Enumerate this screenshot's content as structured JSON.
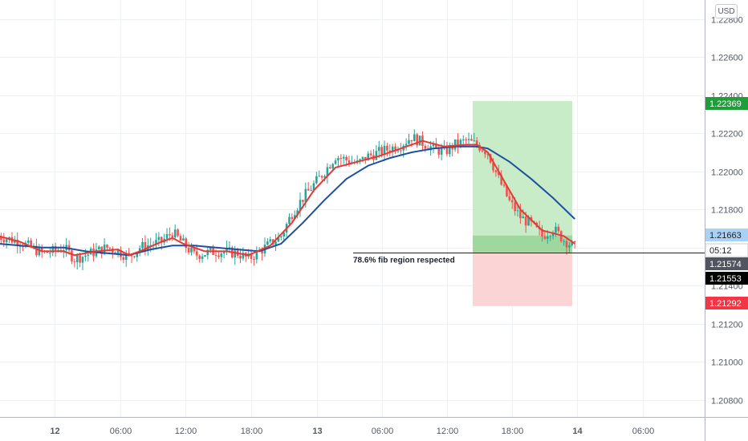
{
  "currency_label": "USD",
  "chart_data": {
    "type": "candlestick",
    "instrument_quote": "USD",
    "y_ticks": [
      "1.20800",
      "1.21000",
      "1.21200",
      "1.21400",
      "1.21600",
      "1.21800",
      "1.22000",
      "1.22200",
      "1.22400",
      "1.22600",
      "1.22800"
    ],
    "y_tick_values": [
      1.208,
      1.21,
      1.212,
      1.214,
      1.216,
      1.218,
      1.22,
      1.222,
      1.224,
      1.226,
      1.228
    ],
    "ylim": [
      1.2071,
      1.229
    ],
    "x_ticks": [
      {
        "label": "12",
        "bold": true
      },
      {
        "label": "06:00",
        "bold": false
      },
      {
        "label": "12:00",
        "bold": false
      },
      {
        "label": "18:00",
        "bold": false
      },
      {
        "label": "13",
        "bold": true
      },
      {
        "label": "06:00",
        "bold": false
      },
      {
        "label": "12:00",
        "bold": false
      },
      {
        "label": "18:00",
        "bold": false
      },
      {
        "label": "14",
        "bold": true
      },
      {
        "label": "06:00",
        "bold": false
      }
    ],
    "price_trend": [
      [
        0,
        1.2166
      ],
      [
        2,
        1.2163
      ],
      [
        4,
        1.2157
      ],
      [
        5,
        1.2158
      ],
      [
        6,
        1.216
      ],
      [
        7,
        1.2154
      ],
      [
        8,
        1.2156
      ],
      [
        10,
        1.216
      ],
      [
        11,
        1.2158
      ],
      [
        12,
        1.2155
      ],
      [
        13,
        1.216
      ],
      [
        15,
        1.2163
      ],
      [
        16,
        1.2168
      ],
      [
        17,
        1.2162
      ],
      [
        18,
        1.2156
      ],
      [
        20,
        1.2158
      ],
      [
        22,
        1.2157
      ],
      [
        23,
        1.2154
      ],
      [
        24,
        1.2158
      ],
      [
        26,
        1.2166
      ],
      [
        27,
        1.2178
      ],
      [
        28,
        1.2186
      ],
      [
        30,
        1.22
      ],
      [
        31,
        1.2208
      ],
      [
        33,
        1.2204
      ],
      [
        34,
        1.2208
      ],
      [
        35,
        1.221
      ],
      [
        37,
        1.2214
      ],
      [
        38,
        1.2218
      ],
      [
        39,
        1.2215
      ],
      [
        40,
        1.2212
      ],
      [
        41,
        1.221
      ],
      [
        42,
        1.2214
      ],
      [
        43,
        1.2216
      ],
      [
        44,
        1.2214
      ],
      [
        45,
        1.221
      ],
      [
        46,
        1.2196
      ],
      [
        47,
        1.2184
      ],
      [
        48,
        1.2176
      ],
      [
        49,
        1.2172
      ],
      [
        50,
        1.2166
      ],
      [
        51,
        1.217
      ],
      [
        52,
        1.2164
      ],
      [
        53,
        1.216
      ]
    ],
    "sma_fast": [
      [
        0,
        1.2166
      ],
      [
        2,
        1.2163
      ],
      [
        4,
        1.2158
      ],
      [
        6,
        1.2158
      ],
      [
        7,
        1.2156
      ],
      [
        9,
        1.2158
      ],
      [
        11,
        1.2159
      ],
      [
        12,
        1.2156
      ],
      [
        13,
        1.2158
      ],
      [
        15,
        1.2163
      ],
      [
        16,
        1.2165
      ],
      [
        17,
        1.2162
      ],
      [
        19,
        1.2158
      ],
      [
        21,
        1.2158
      ],
      [
        23,
        1.2156
      ],
      [
        25,
        1.2161
      ],
      [
        27,
        1.2173
      ],
      [
        29,
        1.219
      ],
      [
        31,
        1.2202
      ],
      [
        33,
        1.2205
      ],
      [
        35,
        1.2208
      ],
      [
        37,
        1.2212
      ],
      [
        39,
        1.2216
      ],
      [
        41,
        1.2213
      ],
      [
        43,
        1.2214
      ],
      [
        44,
        1.2214
      ],
      [
        45,
        1.221
      ],
      [
        46,
        1.22
      ],
      [
        48,
        1.218
      ],
      [
        50,
        1.2169
      ],
      [
        52,
        1.2166
      ],
      [
        53,
        1.2162
      ]
    ],
    "sma_slow": [
      [
        0,
        1.2162
      ],
      [
        2,
        1.2161
      ],
      [
        4,
        1.216
      ],
      [
        6,
        1.216
      ],
      [
        8,
        1.2158
      ],
      [
        10,
        1.2157
      ],
      [
        12,
        1.2156
      ],
      [
        14,
        1.2159
      ],
      [
        16,
        1.2161
      ],
      [
        18,
        1.2161
      ],
      [
        20,
        1.216
      ],
      [
        22,
        1.2159
      ],
      [
        24,
        1.2158
      ],
      [
        26,
        1.2162
      ],
      [
        28,
        1.2173
      ],
      [
        30,
        1.2185
      ],
      [
        32,
        1.2196
      ],
      [
        34,
        1.2203
      ],
      [
        36,
        1.2207
      ],
      [
        38,
        1.221
      ],
      [
        40,
        1.2212
      ],
      [
        42,
        1.2213
      ],
      [
        44,
        1.2213
      ],
      [
        45,
        1.2212
      ],
      [
        47,
        1.2205
      ],
      [
        49,
        1.2196
      ],
      [
        51,
        1.2186
      ],
      [
        53,
        1.2175
      ]
    ],
    "position": {
      "entry": 1.21574,
      "target": 1.22369,
      "stop": 1.21292,
      "start_x": 53,
      "end_x": 64
    },
    "horizontal_line": {
      "price": 1.21574,
      "from_x": 39
    },
    "price_tags": [
      {
        "label": "1.22369",
        "price": 1.22369,
        "bg": "#1e9e38",
        "fg": "#ffffff"
      },
      {
        "label": "1.21663",
        "price": 1.21663,
        "bg": "#a8d1f5",
        "fg": "#1e222d"
      },
      {
        "label": "05:12",
        "price": 1.21608,
        "bg": "#ffffff",
        "fg": "#1e222d"
      },
      {
        "label": "1.21574",
        "price": 1.21574,
        "bg": "#505560",
        "fg": "#ffffff"
      },
      {
        "label": "1.21553",
        "price": 1.21553,
        "bg": "#000000",
        "fg": "#ffffff"
      },
      {
        "label": "1.21292",
        "price": 1.21292,
        "bg": "#f23645",
        "fg": "#ffffff"
      }
    ],
    "annotation": {
      "text": "78.6% fib region respected",
      "x": 45,
      "price": 1.21574
    },
    "colors": {
      "up_candle": "#26a69a",
      "down_candle": "#ef5350",
      "sma_fast": "#e53935",
      "sma_slow": "#1e4fa0",
      "profit_zone": "#c8ebc8",
      "profit_zone_dark": "#9fd89f",
      "loss_zone": "#fbd5d5"
    }
  }
}
